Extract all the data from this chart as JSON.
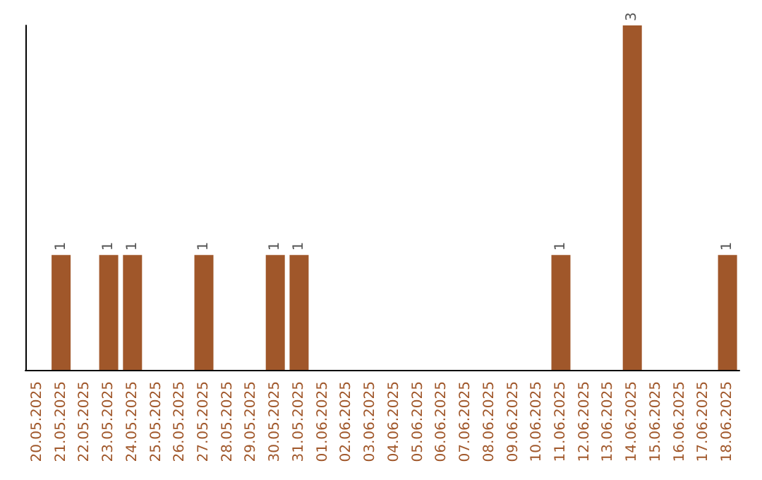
{
  "chart_data": {
    "type": "bar",
    "categories": [
      "20.05.2025",
      "21.05.2025",
      "22.05.2025",
      "23.05.2025",
      "24.05.2025",
      "25.05.2025",
      "26.05.2025",
      "27.05.2025",
      "28.05.2025",
      "29.05.2025",
      "30.05.2025",
      "31.05.2025",
      "01.06.2025",
      "02.06.2025",
      "03.06.2025",
      "04.06.2025",
      "05.06.2025",
      "06.06.2025",
      "07.06.2025",
      "08.06.2025",
      "09.06.2025",
      "10.06.2025",
      "11.06.2025",
      "12.06.2025",
      "13.06.2025",
      "14.06.2025",
      "15.06.2025",
      "16.06.2025",
      "17.06.2025",
      "18.06.2025"
    ],
    "values": [
      0,
      1,
      0,
      1,
      1,
      0,
      0,
      1,
      0,
      0,
      1,
      1,
      0,
      0,
      0,
      0,
      0,
      0,
      0,
      0,
      0,
      0,
      1,
      0,
      0,
      3,
      0,
      0,
      0,
      1
    ],
    "value_labels": [
      null,
      "1",
      null,
      "1",
      "1",
      null,
      null,
      "1",
      null,
      null,
      "1",
      "1",
      null,
      null,
      null,
      null,
      null,
      null,
      null,
      null,
      null,
      null,
      "1",
      null,
      null,
      "3",
      null,
      null,
      null,
      "1"
    ],
    "color": "#a0572a",
    "grid": false,
    "tick_labels": "x"
  }
}
